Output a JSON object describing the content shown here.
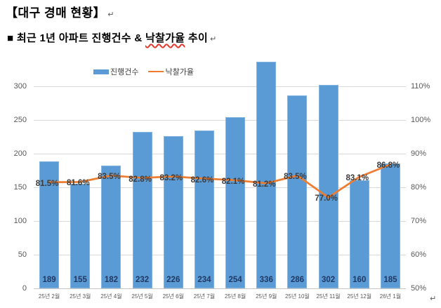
{
  "doc": {
    "title": "【대구 경매 현황】",
    "subtitle_prefix": "■ 최근 1년 아파트 진행건수 & ",
    "subtitle_highlight": "낙찰가율",
    "subtitle_suffix": " 추이",
    "return_mark": "↵"
  },
  "legend": {
    "bar_label": "진행건수",
    "line_label": "낙찰가율"
  },
  "colors": {
    "bar_fill": "#5b9bd5",
    "bar_border": "#84b4e0",
    "line_stroke": "#ed7d31",
    "gridline": "#d9d9d9",
    "axis_text": "#595959",
    "bar_value_text": "#1f3864",
    "pct_value_text": "#3b3b3b",
    "wavy_underline": "#e23b2e"
  },
  "chart_data": {
    "type": "combo",
    "title": "최근 1년 아파트 진행건수 & 낙찰가율 추이",
    "categories": [
      "25년 2월",
      "25년 3월",
      "25년 4월",
      "25년 5월",
      "25년 6월",
      "25년 7월",
      "25년 8월",
      "25년 9월",
      "25년 10월",
      "25년 11월",
      "25년 12월",
      "26년 1월"
    ],
    "series": [
      {
        "name": "진행건수",
        "type": "bar",
        "axis": "left",
        "color": "#5b9bd5",
        "values": [
          189,
          155,
          182,
          232,
          226,
          234,
          254,
          336,
          286,
          302,
          160,
          185
        ]
      },
      {
        "name": "낙찰가율",
        "type": "line",
        "axis": "right",
        "color": "#ed7d31",
        "values": [
          81.5,
          81.6,
          83.5,
          82.8,
          83.2,
          82.6,
          82.1,
          81.2,
          83.5,
          77.0,
          83.1,
          86.8
        ],
        "labels": [
          "81.5%",
          "81.6%",
          "83.5%",
          "82.8%",
          "83.2%",
          "82.6%",
          "82.1%",
          "81.2%",
          "83.5%",
          "77.0%",
          "83.1%",
          "86.8%"
        ]
      }
    ],
    "left_axis": {
      "min": 0,
      "max": 345,
      "tick_step": 50,
      "ticks": [
        0,
        50,
        100,
        150,
        200,
        250,
        300
      ]
    },
    "right_axis": {
      "min": 50,
      "max": 110,
      "tick_step": 10,
      "ticks": [
        50,
        60,
        70,
        80,
        90,
        100,
        110
      ],
      "suffix": "%"
    },
    "grid": true,
    "legend_position": "top-left"
  }
}
